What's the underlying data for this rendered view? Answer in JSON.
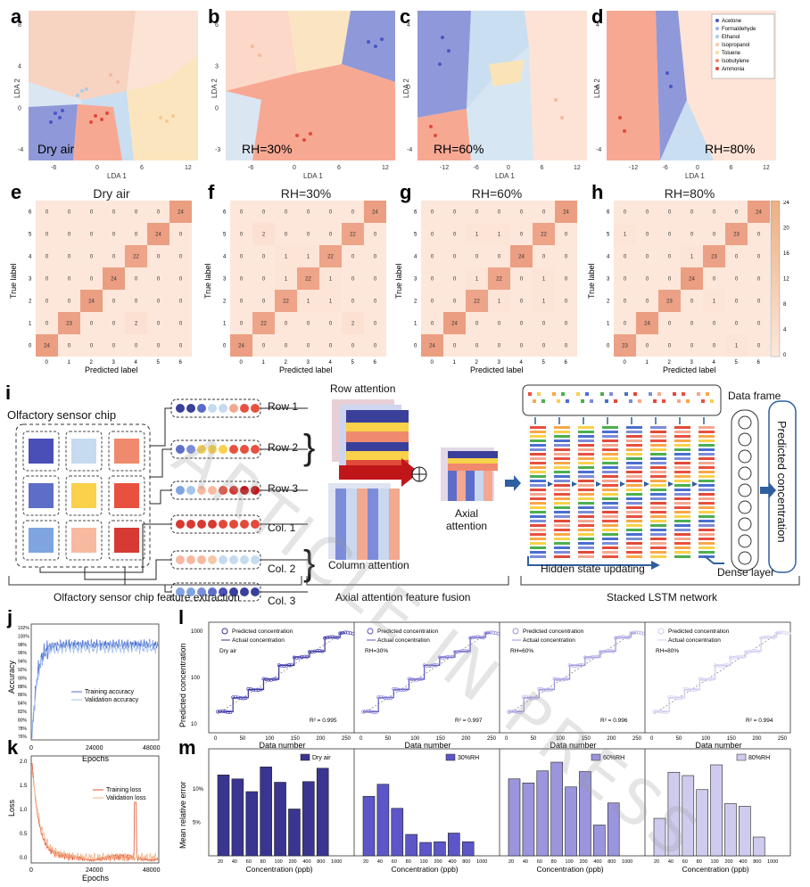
{
  "panel_letters": {
    "a": "a",
    "b": "b",
    "c": "c",
    "d": "d",
    "e": "e",
    "f": "f",
    "g": "g",
    "h": "h",
    "i": "i",
    "j": "j",
    "k": "k",
    "l": "l",
    "m": "m"
  },
  "lda": {
    "xlabel": "LDA 1",
    "ylabel": "LDA 2",
    "conditions": [
      "Dry air",
      "RH=30%",
      "RH=60%",
      "RH=80%"
    ],
    "legend": [
      "Acetone",
      "Formaldehyde",
      "Ethanol",
      "Isopropanol",
      "Toluene",
      "Isobutylene",
      "Ammonia"
    ],
    "legend_colors": [
      "#4b55c8",
      "#9fb4e8",
      "#a9cde8",
      "#f3c9a8",
      "#f6d9a0",
      "#f08a6e",
      "#e24a3a"
    ],
    "xticks_a": [
      "-6",
      "0",
      "6",
      "12"
    ],
    "yticks_a": [
      "8",
      "4",
      "0",
      "-4"
    ],
    "xticks_b": [
      "-6",
      "0",
      "6",
      "12"
    ],
    "yticks_b": [
      "6",
      "3",
      "0",
      "-3"
    ],
    "xticks_c": [
      "-12",
      "-6",
      "0",
      "6",
      "12"
    ],
    "yticks_c": [
      "4",
      "0",
      "-4"
    ],
    "xticks_d": [
      "-12",
      "-6",
      "0",
      "6",
      "12"
    ],
    "yticks_d": [
      "4",
      "0",
      "-4"
    ]
  },
  "confusion": {
    "titles": [
      "Dry air",
      "RH=30%",
      "RH=60%",
      "RH=80%"
    ],
    "xlabel": "Predicted label",
    "ylabel": "True label",
    "ticks": [
      "0",
      "1",
      "2",
      "3",
      "4",
      "5",
      "6"
    ],
    "matrices": [
      [
        [
          0,
          0,
          0,
          0,
          0,
          0,
          24
        ],
        [
          0,
          0,
          0,
          0,
          0,
          24,
          0
        ],
        [
          0,
          0,
          0,
          0,
          22,
          0,
          0
        ],
        [
          0,
          0,
          0,
          24,
          0,
          0,
          0
        ],
        [
          0,
          0,
          24,
          0,
          0,
          0,
          0
        ],
        [
          0,
          23,
          0,
          0,
          2,
          0,
          0
        ],
        [
          24,
          0,
          0,
          0,
          0,
          0,
          0
        ]
      ],
      [
        [
          0,
          0,
          0,
          0,
          0,
          0,
          24
        ],
        [
          0,
          2,
          0,
          0,
          0,
          22,
          0
        ],
        [
          0,
          0,
          1,
          1,
          22,
          0,
          0
        ],
        [
          0,
          0,
          1,
          22,
          1,
          0,
          0
        ],
        [
          0,
          0,
          22,
          1,
          1,
          0,
          0
        ],
        [
          0,
          22,
          0,
          0,
          0,
          2,
          0
        ],
        [
          24,
          0,
          0,
          0,
          0,
          0,
          0
        ]
      ],
      [
        [
          0,
          0,
          0,
          0,
          0,
          0,
          24
        ],
        [
          0,
          0,
          1,
          1,
          0,
          22,
          0
        ],
        [
          0,
          0,
          0,
          0,
          24,
          0,
          0
        ],
        [
          0,
          0,
          1,
          22,
          0,
          1,
          0
        ],
        [
          0,
          0,
          22,
          1,
          0,
          1,
          0
        ],
        [
          0,
          24,
          0,
          0,
          0,
          0,
          0
        ],
        [
          24,
          0,
          0,
          0,
          0,
          0,
          0
        ]
      ],
      [
        [
          0,
          0,
          0,
          0,
          0,
          0,
          24
        ],
        [
          1,
          0,
          0,
          0,
          0,
          23,
          0
        ],
        [
          0,
          0,
          0,
          1,
          23,
          0,
          0
        ],
        [
          0,
          0,
          0,
          24,
          0,
          0,
          0
        ],
        [
          0,
          0,
          23,
          0,
          1,
          0,
          0
        ],
        [
          0,
          24,
          0,
          0,
          0,
          0,
          0
        ],
        [
          23,
          0,
          0,
          0,
          0,
          1,
          0
        ]
      ]
    ],
    "colorbar_ticks": [
      "24",
      "20",
      "16",
      "12",
      "8",
      "4",
      "0"
    ]
  },
  "schematic": {
    "chip_title": "Olfactory sensor chip",
    "rows": [
      "Row 1",
      "Row 2",
      "Row 3"
    ],
    "cols": [
      "Col. 1",
      "Col. 2",
      "Col. 3"
    ],
    "row_attention": "Row attention",
    "column_attention": "Column attention",
    "axial_attention_line1": "Axial",
    "axial_attention_line2": "attention",
    "data_frame": "Data frame",
    "hidden_state": "Hidden state updating",
    "dense_layer": "Dense layer",
    "predicted": "Predicted concentration",
    "section1": "Olfactory sensor chip feature extraction",
    "section2": "Axial attention feature fusion",
    "section3": "Stacked LSTM network",
    "chip_colors": [
      "#4a4fb8",
      "#c6daf0",
      "#f08a6e",
      "#5e6ec8",
      "#f9d14a",
      "#e8513f",
      "#7fa4e0",
      "#f7b9a0",
      "#d63a32"
    ]
  },
  "training_acc": {
    "ylabel": "Accuracy",
    "xlabel": "Epochs",
    "xticks": [
      "0",
      "24000",
      "48000"
    ],
    "yticks": [
      "102%",
      "100%",
      "98%",
      "96%",
      "94%",
      "92%",
      "90%",
      "88%",
      "86%",
      "84%",
      "82%",
      "80%",
      "78%",
      "76%"
    ],
    "legend": [
      "Training accuracy",
      "Validation accuracy"
    ]
  },
  "training_loss": {
    "ylabel": "Loss",
    "xlabel": "Epochs",
    "xticks": [
      "0",
      "24000",
      "48000"
    ],
    "yticks": [
      "2.0",
      "1.5",
      "1.0",
      "0.5",
      "0.0"
    ],
    "legend": [
      "Training loss",
      "Validation loss"
    ]
  },
  "chart_data": [
    {
      "type": "line",
      "panel": "l",
      "title": "Dry air",
      "xlabel": "Data number",
      "ylabel": "Predicted concentration",
      "legend": [
        "Predicted concentration",
        "Actual concentration"
      ],
      "r2": "R² = 0.995",
      "xlim": [
        0,
        250
      ],
      "ylim": [
        10,
        1000
      ],
      "yscale": "log",
      "x": [
        0,
        30,
        60,
        90,
        120,
        150,
        180,
        210,
        240
      ],
      "y": [
        20,
        40,
        60,
        100,
        200,
        300,
        400,
        800,
        1000
      ]
    },
    {
      "type": "line",
      "panel": "l",
      "title": "RH=30%",
      "xlabel": "Data number",
      "r2": "R² = 0.997",
      "xlim": [
        0,
        250
      ],
      "ylim": [
        10,
        1000
      ],
      "yscale": "log",
      "x": [
        0,
        30,
        60,
        90,
        120,
        150,
        180,
        210,
        240
      ],
      "y": [
        20,
        40,
        60,
        100,
        200,
        300,
        400,
        800,
        1000
      ]
    },
    {
      "type": "line",
      "panel": "l",
      "title": "RH=60%",
      "xlabel": "Data number",
      "r2": "R² = 0.996",
      "xlim": [
        0,
        250
      ],
      "ylim": [
        10,
        1000
      ],
      "yscale": "log",
      "x": [
        0,
        30,
        60,
        90,
        120,
        150,
        180,
        210,
        240
      ],
      "y": [
        20,
        40,
        60,
        100,
        200,
        300,
        400,
        800,
        1000
      ]
    },
    {
      "type": "line",
      "panel": "l",
      "title": "RH=80%",
      "xlabel": "Data number",
      "r2": "R² = 0.994",
      "xlim": [
        0,
        250
      ],
      "ylim": [
        10,
        1000
      ],
      "yscale": "log",
      "x": [
        0,
        30,
        60,
        90,
        120,
        150,
        180,
        210,
        240
      ],
      "y": [
        20,
        40,
        60,
        100,
        200,
        300,
        400,
        800,
        1000
      ]
    },
    {
      "type": "bar",
      "panel": "m",
      "legend": "Dry air",
      "xlabel": "Concentration (ppb)",
      "ylabel": "Mean relative error",
      "ylim": [
        0,
        16
      ],
      "categories": [
        "20",
        "40",
        "60",
        "80",
        "100",
        "200",
        "400",
        "800",
        "1000"
      ],
      "values": [
        12.1,
        11.5,
        9.6,
        13.3,
        11.0,
        7.0,
        11.1,
        13.1,
        0
      ]
    },
    {
      "type": "bar",
      "panel": "m",
      "legend": "30%RH",
      "xlabel": "Concentration (ppb)",
      "ylim": [
        0,
        16
      ],
      "categories": [
        "20",
        "40",
        "60",
        "80",
        "100",
        "200",
        "400",
        "800",
        "1000"
      ],
      "values": [
        8.9,
        10.7,
        7.1,
        3.2,
        2.0,
        2.1,
        3.4,
        2.1,
        0
      ]
    },
    {
      "type": "bar",
      "panel": "m",
      "legend": "60%RH",
      "xlabel": "Concentration (ppb)",
      "ylim": [
        0,
        16
      ],
      "categories": [
        "20",
        "40",
        "60",
        "80",
        "100",
        "200",
        "400",
        "800",
        "1000"
      ],
      "values": [
        11.5,
        10.9,
        12.7,
        14.0,
        10.3,
        12.6,
        4.6,
        7.9,
        0
      ]
    },
    {
      "type": "bar",
      "panel": "m",
      "legend": "80%RH",
      "xlabel": "Concentration (ppb)",
      "ylim": [
        0,
        16
      ],
      "categories": [
        "20",
        "40",
        "60",
        "80",
        "100",
        "200",
        "400",
        "800",
        "1000"
      ],
      "values": [
        5.6,
        12.5,
        12.0,
        9.9,
        13.6,
        7.8,
        7.4,
        2.8,
        0
      ]
    }
  ],
  "l_yticks": [
    "1000",
    "100",
    "10"
  ],
  "l_xticks": [
    "0",
    "50",
    "100",
    "150",
    "200",
    "250"
  ],
  "m_yticks": [
    "10%",
    "5%"
  ],
  "watermark": "ARTICLE IN PRESS"
}
